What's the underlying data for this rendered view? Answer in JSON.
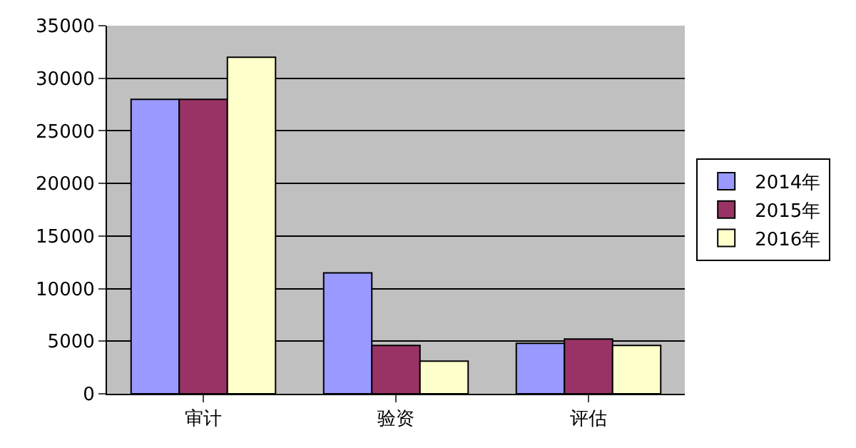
{
  "chart_data": {
    "type": "bar",
    "categories": [
      "审计",
      "验资",
      "评估"
    ],
    "series": [
      {
        "name": "2014年",
        "color": "#9999ff",
        "values": [
          28000,
          11500,
          4800
        ]
      },
      {
        "name": "2015年",
        "color": "#993366",
        "values": [
          28000,
          4600,
          5200
        ]
      },
      {
        "name": "2016年",
        "color": "#ffffcc",
        "values": [
          32000,
          3100,
          4600
        ]
      }
    ],
    "ylim": [
      0,
      35000
    ],
    "yticks": [
      0,
      5000,
      10000,
      15000,
      20000,
      25000,
      30000,
      35000
    ],
    "grid": "y",
    "legend": "right"
  }
}
